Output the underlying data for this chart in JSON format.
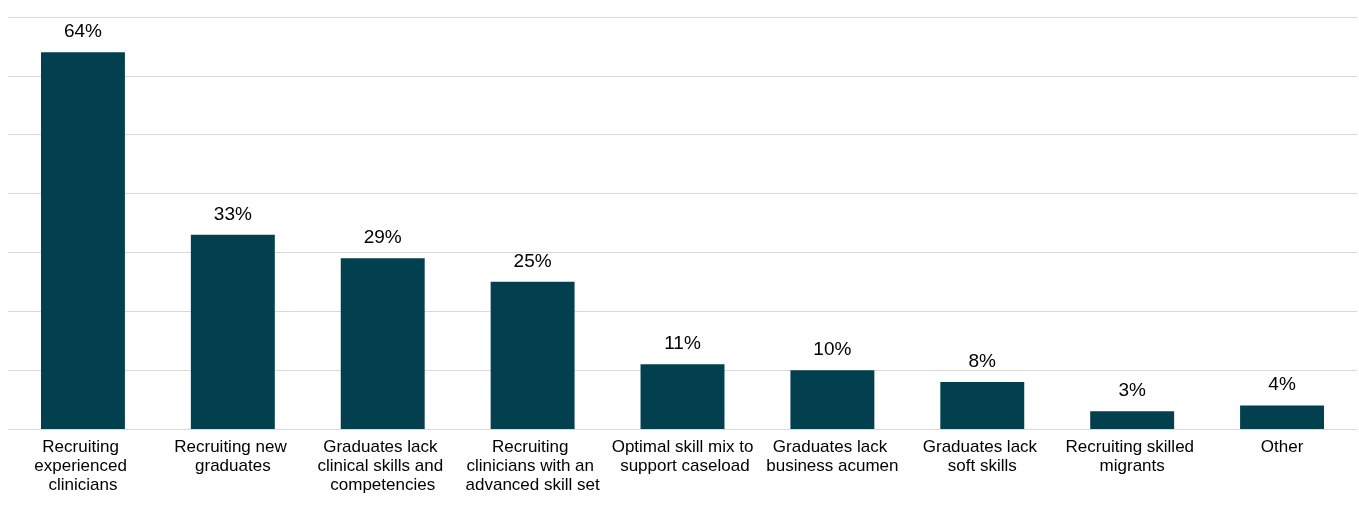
{
  "chart_data": {
    "type": "bar",
    "categories": [
      "Recruiting experienced clinicians",
      "Recruiting new graduates",
      "Graduates lack clinical skills and competencies",
      "Recruiting clinicians with an advanced skill set",
      "Optimal skill mix to support caseload",
      "Graduates lack business acumen",
      "Graduates lack soft skills",
      "Recruiting skilled migrants",
      "Other"
    ],
    "values": [
      64,
      33,
      29,
      25,
      11,
      10,
      8,
      3,
      4
    ],
    "value_labels": [
      "64%",
      "33%",
      "29%",
      "25%",
      "11%",
      "10%",
      "8%",
      "3%",
      "4%"
    ],
    "color": "#02404f",
    "ylim": [
      0,
      70
    ],
    "yticks": [
      {
        "value": 0,
        "label": null
      },
      {
        "value": 10,
        "label": null
      },
      {
        "value": 20,
        "label": null
      },
      {
        "value": 30,
        "label": null
      },
      {
        "value": 40,
        "label": null
      },
      {
        "value": 50,
        "label": null
      },
      {
        "value": 60,
        "label": null
      },
      {
        "value": 70,
        "label": null
      }
    ],
    "grid": "y",
    "tick_labels": "x"
  }
}
